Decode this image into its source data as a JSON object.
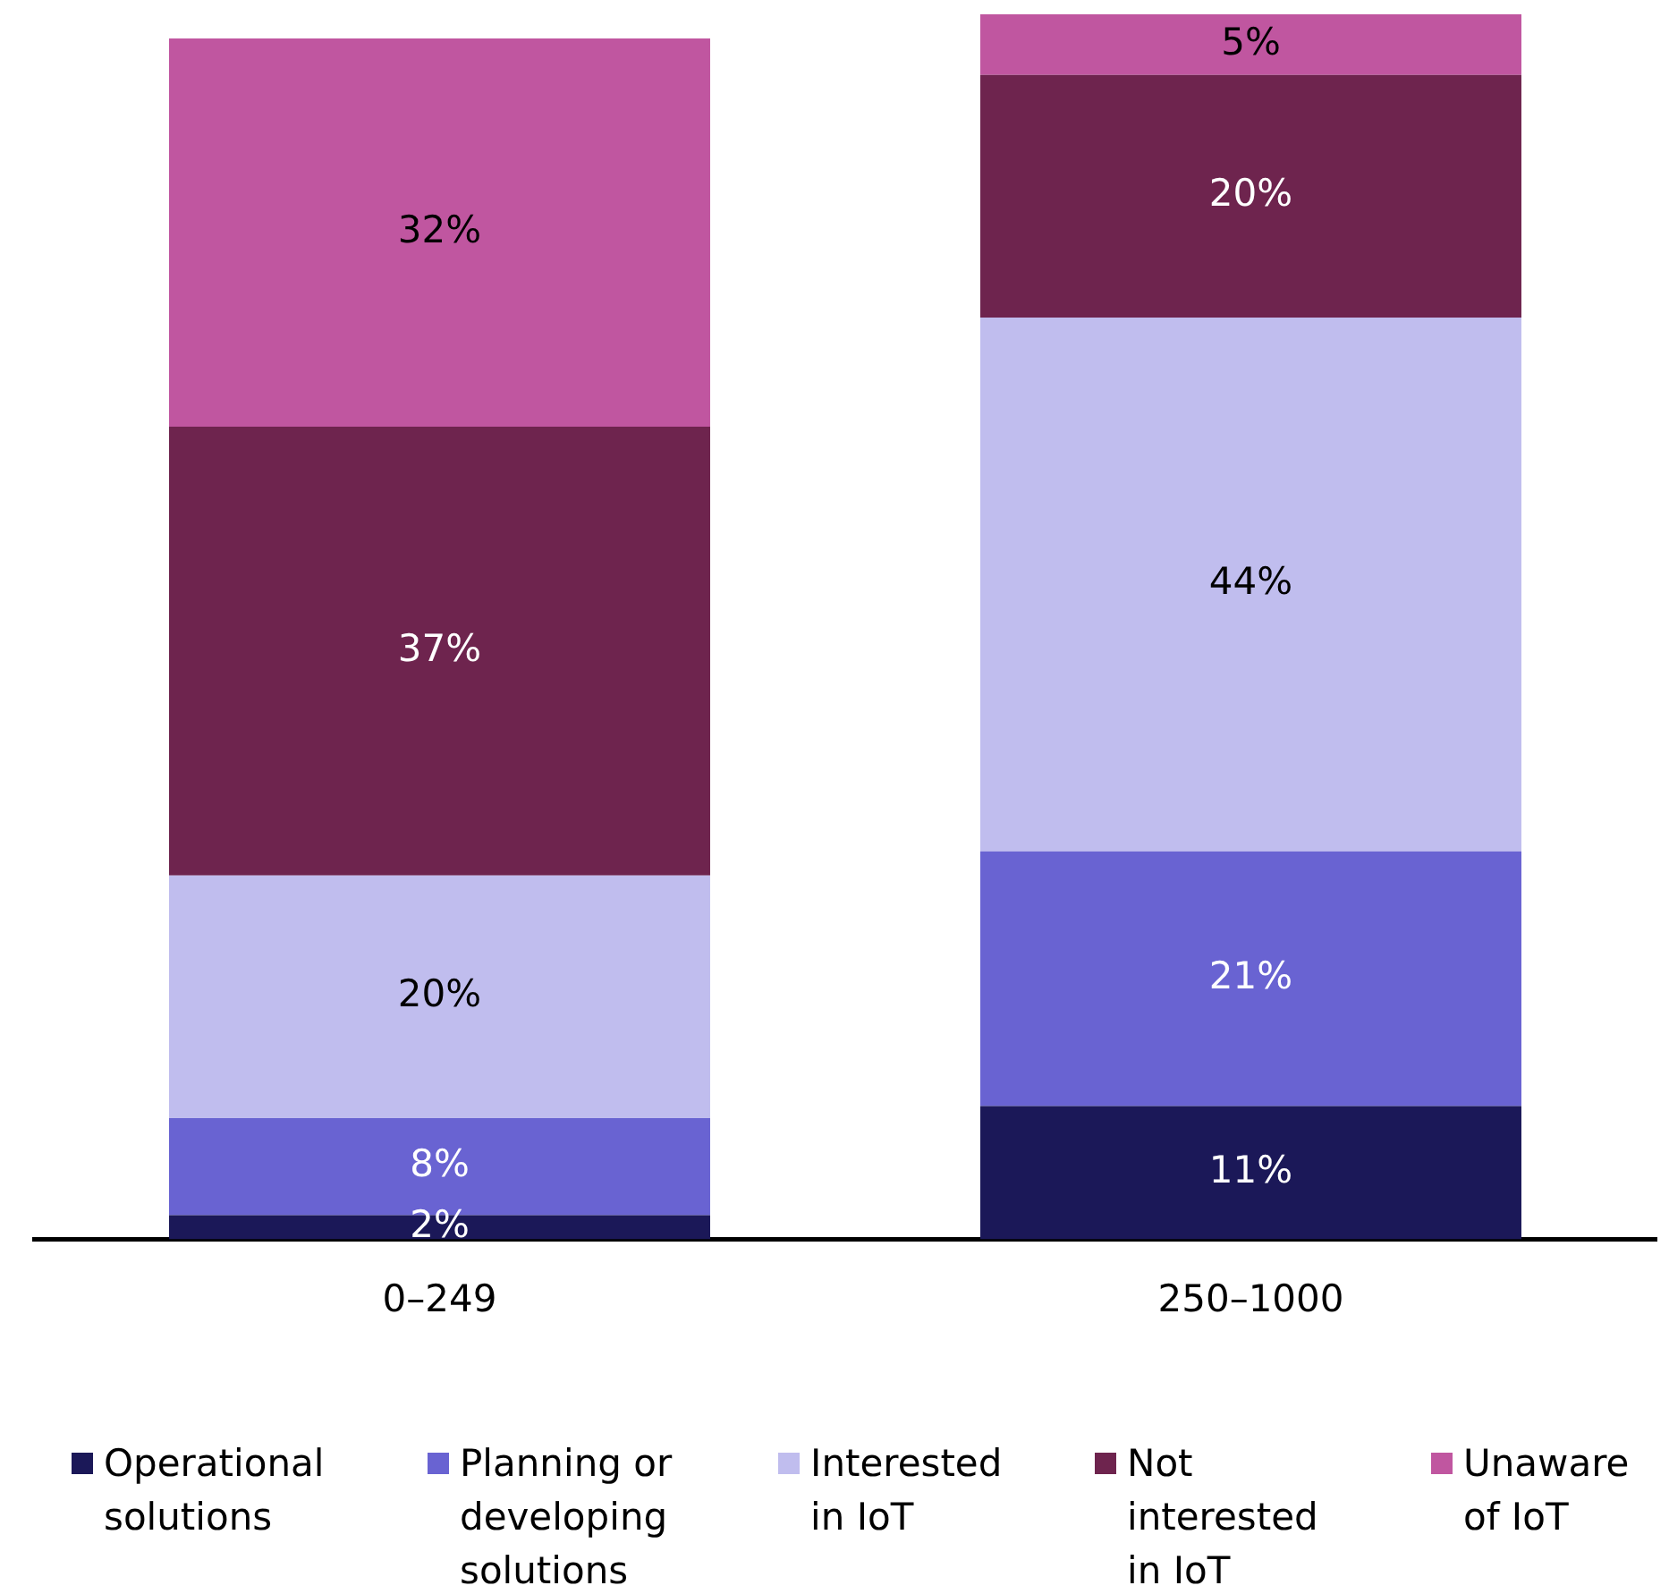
{
  "chart_data": {
    "type": "bar",
    "categories": [
      "0–249",
      "250–1000"
    ],
    "stacked": true,
    "legend": "bottom",
    "tick_labels": "x",
    "series": [
      {
        "name": "Operational solutions",
        "color": "#1b1858",
        "values": [
          2,
          11
        ],
        "value_labels": [
          "2%",
          "11%"
        ]
      },
      {
        "name": "Planning or developing solutions",
        "color": "#6963d2",
        "values": [
          8,
          21
        ],
        "value_labels": [
          "8%",
          "21%"
        ]
      },
      {
        "name": "Interested in IoT",
        "color": "#c0bdee",
        "values": [
          20,
          44
        ],
        "value_labels": [
          "20%",
          "44%"
        ]
      },
      {
        "name": "Not interested in IoT",
        "color": "#6e244e",
        "values": [
          37,
          20
        ],
        "value_labels": [
          "37%",
          "20%"
        ]
      },
      {
        "name": "Unaware of IoT",
        "color": "#c056a0",
        "values": [
          32,
          5
        ],
        "value_labels": [
          "32%",
          "5%"
        ]
      }
    ]
  }
}
